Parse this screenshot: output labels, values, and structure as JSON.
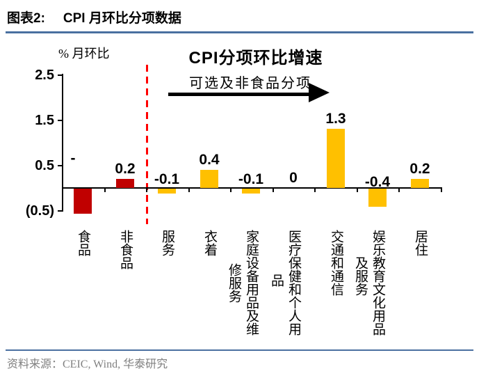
{
  "header": {
    "prefix": "图表2:",
    "title": "CPI 月环比分项数据"
  },
  "chart": {
    "axis_unit_label": "% 月环比",
    "title": "CPI分项环比增速",
    "annotation": "可选及非食品分项",
    "category_display": [
      {
        "main": "食品",
        "cont": ""
      },
      {
        "main": "非食品",
        "cont": ""
      },
      {
        "main": "服务",
        "cont": ""
      },
      {
        "main": "衣着",
        "cont": ""
      },
      {
        "main": "家庭设备用品及维",
        "cont": "修服务"
      },
      {
        "main": "医疗保健和个人用",
        "cont": "品"
      },
      {
        "main": "交通和通信",
        "cont": ""
      },
      {
        "main": "娱乐教育文化用品",
        "cont": "及服务"
      },
      {
        "main": "居住",
        "cont": ""
      }
    ]
  },
  "chart_data": {
    "type": "bar",
    "title": "CPI分项环比增速",
    "ylabel": "% 月环比",
    "annotation": "可选及非食品分项",
    "ylim": [
      -0.5,
      2.5
    ],
    "grid": false,
    "legend": false,
    "y_tick_values": [
      2.5,
      1.5,
      0.5,
      -0.5
    ],
    "y_tick_labels": [
      "2.5",
      "1.5",
      "0.5",
      "(0.5)"
    ],
    "categories": [
      "食品",
      "非食品",
      "服务",
      "衣着",
      "家庭设备用品及维修服务",
      "医疗保健和个人用品",
      "交通和通信",
      "娱乐教育文化用品及服务",
      "居住"
    ],
    "values": [
      -0.55,
      0.2,
      -0.1,
      0.4,
      -0.1,
      0,
      1.3,
      -0.4,
      0.2
    ],
    "value_labels": [
      "-",
      "0.2",
      "-0.1",
      "0.4",
      "-0.1",
      "0",
      "1.3",
      "-0.4",
      "0.2"
    ],
    "bar_colors": [
      "#C00000",
      "#C00000",
      "#FFC000",
      "#FFC000",
      "#FFC000",
      "#FFC000",
      "#FFC000",
      "#FFC000",
      "#FFC000"
    ],
    "separator": {
      "after_category_index": 1,
      "color": "#FF0000",
      "style": "dashed"
    },
    "colors": {
      "food": "#C00000",
      "nonfood": "#FFC000",
      "separator": "#FF0000",
      "rule": "#4a70a0"
    }
  },
  "footer": {
    "source": "资料来源：CEIC, Wind,  华泰研究"
  }
}
